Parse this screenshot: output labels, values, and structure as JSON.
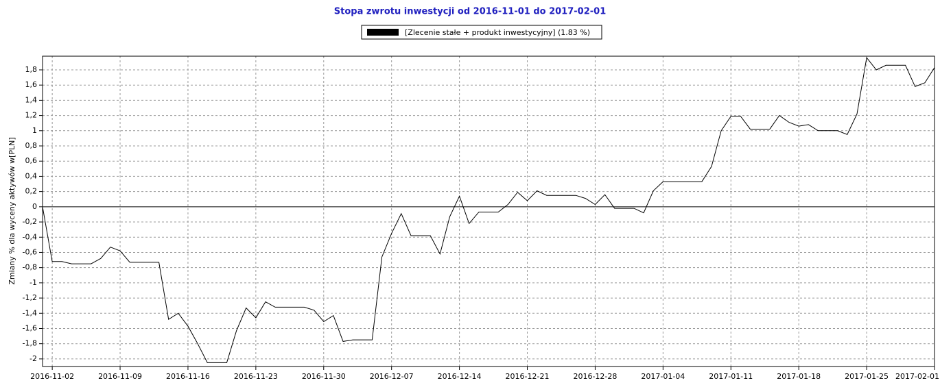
{
  "chart_data": {
    "type": "line",
    "title": "Stopa zwrotu inwestycji od 2016-11-01 do 2017-02-01",
    "y_label": "Zmiany % dla wyceny aktywów w[PLN]",
    "x": [
      "2016-11-01",
      "2016-11-02",
      "2016-11-03",
      "2016-11-04",
      "2016-11-06",
      "2016-11-07",
      "2016-11-08",
      "2016-11-09",
      "2016-11-10",
      "2016-11-13",
      "2016-11-14",
      "2016-11-15",
      "2016-11-16",
      "2016-11-17",
      "2016-11-18",
      "2016-11-20",
      "2016-11-21",
      "2016-11-22",
      "2016-11-23",
      "2016-11-24",
      "2016-11-25",
      "2016-11-28",
      "2016-11-29",
      "2016-11-30",
      "2016-12-01",
      "2016-12-02",
      "2016-12-03",
      "2016-12-05",
      "2016-12-06",
      "2016-12-07",
      "2016-12-08",
      "2016-12-09",
      "2016-12-11",
      "2016-12-12",
      "2016-12-13",
      "2016-12-14",
      "2016-12-15",
      "2016-12-16",
      "2016-12-18",
      "2016-12-19",
      "2016-12-20",
      "2016-12-21",
      "2016-12-22",
      "2016-12-23",
      "2016-12-26",
      "2016-12-27",
      "2016-12-28",
      "2016-12-29",
      "2016-12-30",
      "2017-01-01",
      "2017-01-02",
      "2017-01-03",
      "2017-01-04",
      "2017-01-08",
      "2017-01-09",
      "2017-01-10",
      "2017-01-11",
      "2017-01-12",
      "2017-01-13",
      "2017-01-15",
      "2017-01-16",
      "2017-01-17",
      "2017-01-18",
      "2017-01-19",
      "2017-01-20",
      "2017-01-22",
      "2017-01-23",
      "2017-01-24",
      "2017-01-25",
      "2017-01-26",
      "2017-01-27",
      "2017-01-29",
      "2017-01-30",
      "2017-01-31",
      "2017-02-01"
    ],
    "series": [
      {
        "name": "[Zlecenie stałe + produkt inwestycyjny] (1.83 %)",
        "color": "#000000",
        "values": [
          0,
          -0.72,
          -0.72,
          -0.75,
          -0.75,
          -0.68,
          -0.53,
          -0.58,
          -0.73,
          -0.73,
          -1.48,
          -1.4,
          -1.57,
          -1.8,
          -2.05,
          -2.05,
          -1.63,
          -1.33,
          -1.46,
          -1.25,
          -1.32,
          -1.32,
          -1.36,
          -1.51,
          -1.43,
          -1.77,
          -1.75,
          -1.75,
          -0.66,
          -0.35,
          -0.09,
          -0.38,
          -0.38,
          -0.62,
          -0.13,
          0.14,
          -0.22,
          -0.07,
          -0.07,
          0.03,
          0.19,
          0.08,
          0.21,
          0.15,
          0.15,
          0.11,
          0.03,
          0.16,
          -0.02,
          -0.02,
          -0.08,
          0.21,
          0.33,
          0.33,
          0.53,
          1.0,
          1.19,
          1.19,
          1.02,
          1.02,
          1.2,
          1.11,
          1.06,
          1.08,
          1.0,
          1.0,
          0.95,
          1.22,
          1.96,
          1.8,
          1.86,
          1.86,
          1.58,
          1.63,
          1.83
        ]
      }
    ],
    "xlim": [
      "2016-11-01",
      "2017-02-01"
    ],
    "xticks": [
      "2016-11-02",
      "2016-11-09",
      "2016-11-16",
      "2016-11-23",
      "2016-11-30",
      "2016-12-07",
      "2016-12-14",
      "2016-12-21",
      "2016-12-28",
      "2017-01-04",
      "2017-01-11",
      "2017-01-18",
      "2017-01-25",
      "2017-02-01"
    ],
    "ylim": [
      -2.1,
      1.98
    ],
    "yticks": [
      -2,
      {
        "value": -1.8,
        "label": "-1,8"
      },
      {
        "value": -1.6,
        "label": "-1,6"
      },
      {
        "value": -1.4,
        "label": "-1,4"
      },
      {
        "value": -1.2,
        "label": "-1,2"
      },
      -1,
      {
        "value": -0.8,
        "label": "-0,8"
      },
      {
        "value": -0.6,
        "label": "-0,6"
      },
      {
        "value": -0.4,
        "label": "-0,4"
      },
      {
        "value": -0.2,
        "label": "-0,2"
      },
      0,
      {
        "value": 0.2,
        "label": "0,2"
      },
      {
        "value": 0.4,
        "label": "0,4"
      },
      {
        "value": 0.6,
        "label": "0,6"
      },
      {
        "value": 0.8,
        "label": "0,8"
      },
      1,
      {
        "value": 1.2,
        "label": "1,2"
      },
      {
        "value": 1.4,
        "label": "1,4"
      },
      {
        "value": 1.6,
        "label": "1,6"
      },
      {
        "value": 1.8,
        "label": "1,8"
      }
    ],
    "grid": true,
    "legend": "top"
  }
}
